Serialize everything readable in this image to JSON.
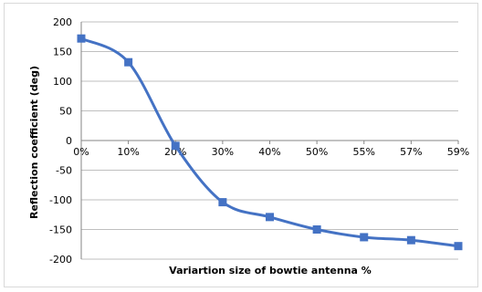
{
  "chart_data": {
    "type": "line",
    "title": "",
    "xlabel": "Variartion size of bowtie antenna %",
    "ylabel": "Reflection coefficient  (deg)",
    "categories": [
      "0%",
      "10%",
      "20%",
      "30%",
      "40%",
      "50%",
      "55%",
      "57%",
      "59%"
    ],
    "series": [
      {
        "values": [
          172,
          132,
          -9,
          -104,
          -129,
          -150,
          -163,
          -168,
          -178
        ]
      }
    ],
    "ylim": [
      -200,
      200
    ],
    "yticks": [
      200,
      150,
      100,
      50,
      0,
      -50,
      -100,
      -150,
      -200
    ],
    "ytick_labels": [
      "200",
      "150",
      "100",
      "50",
      "0",
      "-50",
      "-100",
      "-150",
      "-200"
    ],
    "grid": true,
    "smooth": true,
    "marker": "square",
    "legend": "none",
    "series_color": "#4472c4",
    "grid_color": "#bfbfbf"
  }
}
